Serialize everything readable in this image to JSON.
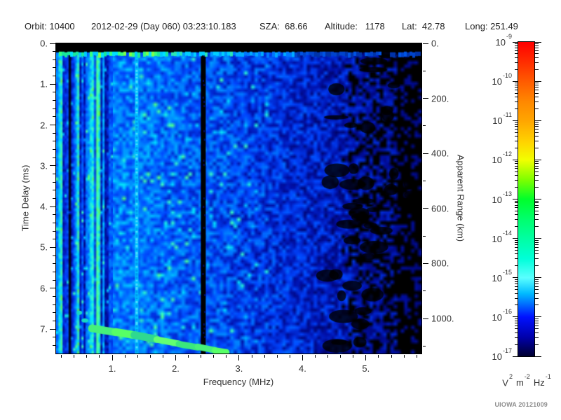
{
  "header": {
    "parts": [
      "Orbit: 10400",
      "2012-02-29 (Day 060) 03:23:10.183",
      "SZA:  68.66",
      "Altitude:   1178",
      "Lat:  42.78",
      "Long: 251.49"
    ]
  },
  "footer": {
    "credit": "UIOWA 20121009"
  },
  "chart_data": {
    "type": "heatmap",
    "subtype": "radar-sounder-ionogram-spectrogram",
    "x_axis": {
      "label": "Frequency (MHz)",
      "min": 0.115,
      "max": 5.875,
      "major_ticks": [
        1,
        2,
        3,
        4,
        5
      ],
      "major_labels": [
        "1.",
        "2.",
        "3.",
        "4.",
        "5."
      ],
      "minor_step": 0.2
    },
    "y_axis_left": {
      "label": "Time Delay (ms)",
      "min": 0,
      "max": 7.6,
      "major_ticks": [
        0,
        1,
        2,
        3,
        4,
        5,
        6,
        7
      ],
      "major_labels": [
        "0.",
        "1.",
        "2.",
        "3.",
        "4.",
        "5.",
        "6.",
        "7."
      ],
      "minor_step": 0.2
    },
    "y_axis_right": {
      "label": "Apparent Range (km)",
      "min": 0,
      "max": 1127,
      "major_ticks": [
        0,
        200,
        400,
        600,
        800,
        1000
      ],
      "major_labels": [
        "0.",
        "200.",
        "400.",
        "600.",
        "800.",
        "1000."
      ],
      "minor_step": 100
    },
    "colorbar": {
      "scale": "log",
      "max": "1e-9",
      "min": "1e-17",
      "base": "10",
      "exponent_labels": [
        "-9",
        "-10",
        "-11",
        "-12",
        "-13",
        "-14",
        "-15",
        "-16",
        "-17"
      ],
      "units": {
        "v": "V",
        "v_exp": "2",
        "m": "m",
        "m_exp": "-2",
        "hz": "Hz",
        "hz_exp": "-1"
      },
      "gradient": [
        [
          0.0,
          "#ff0000"
        ],
        [
          0.06,
          "#ff2a00"
        ],
        [
          0.125,
          "#ff5a00"
        ],
        [
          0.19,
          "#ff8800"
        ],
        [
          0.25,
          "#ffa500"
        ],
        [
          0.32,
          "#ffd400"
        ],
        [
          0.375,
          "#f2ff00"
        ],
        [
          0.44,
          "#7bff00"
        ],
        [
          0.5,
          "#00ff2b"
        ],
        [
          0.565,
          "#00ff6e"
        ],
        [
          0.625,
          "#00ffa2"
        ],
        [
          0.69,
          "#00ffd9"
        ],
        [
          0.75,
          "#5affff"
        ],
        [
          0.8,
          "#00bbff"
        ],
        [
          0.875,
          "#0011ff"
        ],
        [
          0.94,
          "#0000aa"
        ],
        [
          1.0,
          "#000030"
        ]
      ]
    },
    "features": {
      "top_blackout_band_ms": [
        0,
        0.22
      ],
      "surface_echo_row": {
        "delay_ms": 0.27,
        "bright_color": "#37ff7d",
        "fade_above_mhz": 2.5
      },
      "rfi_dark_band_mhz": [
        0.22,
        0.37
      ],
      "rfi_bright_line": {
        "freq_mhz": 1.38,
        "color": "#00c3ff"
      },
      "rfi_dark_line": {
        "freq_mhz": 2.43
      },
      "ionospheric_echo_trace": {
        "color": "#44f573",
        "points_mhz_ms": [
          [
            0.68,
            6.98
          ],
          [
            1.05,
            7.08
          ],
          [
            1.35,
            7.15
          ],
          [
            1.7,
            7.25
          ],
          [
            2.05,
            7.36
          ],
          [
            2.35,
            7.45
          ],
          [
            2.62,
            7.52
          ],
          [
            2.8,
            7.57
          ]
        ]
      },
      "noise": {
        "seed": 20121009,
        "profile": [
          [
            0,
            0.6
          ],
          [
            0.12,
            0.58
          ],
          [
            0.25,
            0.54
          ],
          [
            0.4,
            0.49
          ],
          [
            0.55,
            0.42
          ],
          [
            0.7,
            0.35
          ],
          [
            0.85,
            0.28
          ],
          [
            1,
            0.23
          ]
        ],
        "palette": [
          [
            0,
            0,
            0,
            0
          ],
          [
            0.14,
            0,
            0,
            80
          ],
          [
            0.3,
            0,
            16,
            170
          ],
          [
            0.46,
            0,
            70,
            255
          ],
          [
            0.62,
            0,
            150,
            255
          ],
          [
            0.74,
            0,
            225,
            255
          ],
          [
            0.84,
            60,
            255,
            190
          ],
          [
            1,
            90,
            255,
            90
          ]
        ]
      }
    }
  }
}
